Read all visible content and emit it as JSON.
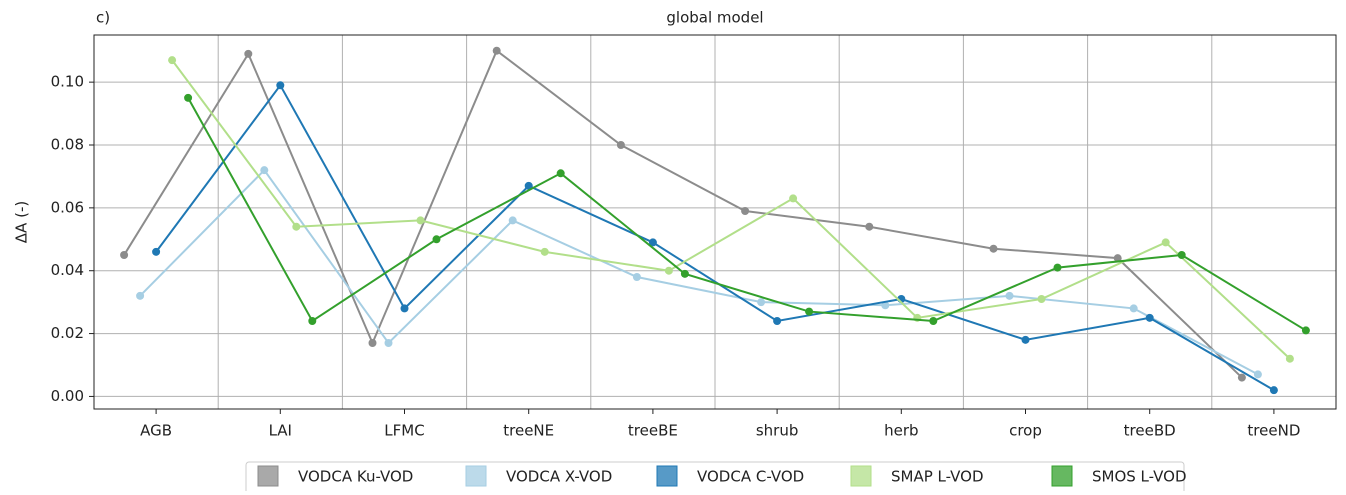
{
  "chart_data": {
    "type": "line",
    "panel_label": "c)",
    "title": "global model",
    "y_label": "ΔA (-)",
    "categories": [
      "AGB",
      "LAI",
      "LFMC",
      "treeNE",
      "treeBE",
      "shrub",
      "herb",
      "crop",
      "treeBD",
      "treeND"
    ],
    "series": [
      {
        "name": "VODCA Ku-VOD",
        "color": "#8c8c8c",
        "values": [
          0.045,
          0.109,
          0.017,
          0.11,
          0.08,
          0.059,
          0.054,
          0.047,
          0.044,
          0.006
        ]
      },
      {
        "name": "VODCA X-VOD",
        "color": "#a6cee3",
        "values": [
          0.032,
          0.072,
          0.017,
          0.056,
          0.038,
          0.03,
          0.029,
          0.032,
          0.028,
          0.007
        ]
      },
      {
        "name": "VODCA C-VOD",
        "color": "#1f78b4",
        "values": [
          0.046,
          0.099,
          0.028,
          0.067,
          0.049,
          0.024,
          0.031,
          0.018,
          0.025,
          0.002
        ]
      },
      {
        "name": "SMAP L-VOD",
        "color": "#b2df8a",
        "values": [
          0.107,
          0.054,
          0.056,
          0.046,
          0.04,
          0.063,
          0.025,
          0.031,
          0.049,
          0.012
        ]
      },
      {
        "name": "SMOS L-VOD",
        "color": "#33a02c",
        "values": [
          0.095,
          0.024,
          0.05,
          0.071,
          0.039,
          0.027,
          0.024,
          0.041,
          0.045,
          0.021
        ]
      }
    ],
    "ylim": [
      -0.004,
      0.115
    ],
    "yticks": [
      {
        "value": 0,
        "label": "0.00"
      },
      {
        "value": 0.02,
        "label": "0.02"
      },
      {
        "value": 0.04,
        "label": "0.04"
      },
      {
        "value": 0.06,
        "label": "0.06"
      },
      {
        "value": 0.08,
        "label": "0.08"
      },
      {
        "value": 0.1,
        "label": "0.10"
      }
    ],
    "grid": true
  }
}
